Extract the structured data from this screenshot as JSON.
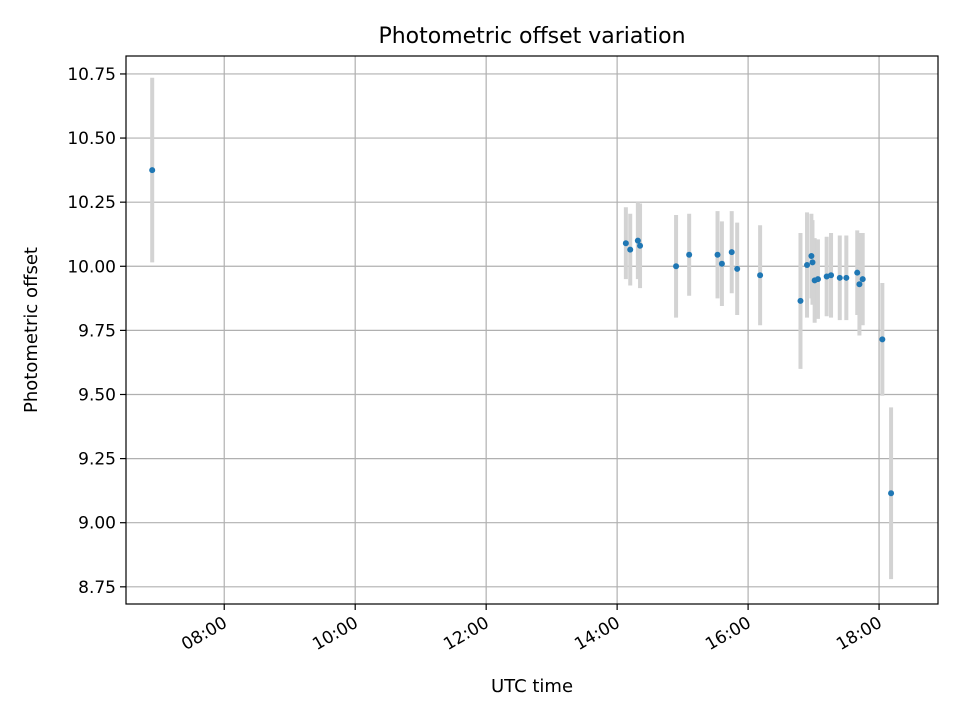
{
  "chart_data": {
    "type": "scatter",
    "title": "Photometric offset variation",
    "xlabel": "UTC time",
    "ylabel": "Photometric offset",
    "x_axis_kind": "time",
    "xlim": [
      "06:30",
      "18:54"
    ],
    "ylim": [
      8.683,
      10.82
    ],
    "x_ticks": [
      "08:00",
      "10:00",
      "12:00",
      "14:00",
      "16:00",
      "18:00"
    ],
    "y_ticks": [
      8.75,
      9.0,
      9.25,
      9.5,
      9.75,
      10.0,
      10.25,
      10.5,
      10.75
    ],
    "y_tick_labels": [
      "8.75",
      "9.00",
      "9.25",
      "9.50",
      "9.75",
      "10.00",
      "10.25",
      "10.50",
      "10.75"
    ],
    "grid": true,
    "colors": {
      "point": "#1f77b4",
      "errorbar": "#d3d3d3",
      "grid": "#b0b0b0"
    },
    "series": [
      {
        "points": [
          {
            "x": "06:54",
            "y": 10.375,
            "err": 0.36
          },
          {
            "x": "14:08",
            "y": 10.09,
            "err": 0.14
          },
          {
            "x": "14:12",
            "y": 10.065,
            "err": 0.14
          },
          {
            "x": "14:19",
            "y": 10.1,
            "err": 0.15
          },
          {
            "x": "14:21",
            "y": 10.08,
            "err": 0.165
          },
          {
            "x": "14:54",
            "y": 10.0,
            "err": 0.2
          },
          {
            "x": "15:06",
            "y": 10.045,
            "err": 0.16
          },
          {
            "x": "15:32",
            "y": 10.045,
            "err": 0.17
          },
          {
            "x": "15:36",
            "y": 10.01,
            "err": 0.165
          },
          {
            "x": "15:45",
            "y": 10.055,
            "err": 0.16
          },
          {
            "x": "15:50",
            "y": 9.99,
            "err": 0.18
          },
          {
            "x": "16:11",
            "y": 9.965,
            "err": 0.195
          },
          {
            "x": "16:48",
            "y": 9.865,
            "err": 0.265
          },
          {
            "x": "16:54",
            "y": 10.005,
            "err": 0.205
          },
          {
            "x": "16:58",
            "y": 10.04,
            "err": 0.165
          },
          {
            "x": "16:59",
            "y": 10.015,
            "err": 0.165
          },
          {
            "x": "17:01",
            "y": 9.945,
            "err": 0.165
          },
          {
            "x": "17:04",
            "y": 9.95,
            "err": 0.155
          },
          {
            "x": "17:12",
            "y": 9.96,
            "err": 0.155
          },
          {
            "x": "17:16",
            "y": 9.965,
            "err": 0.165
          },
          {
            "x": "17:24",
            "y": 9.955,
            "err": 0.165
          },
          {
            "x": "17:30",
            "y": 9.955,
            "err": 0.165
          },
          {
            "x": "17:40",
            "y": 9.975,
            "err": 0.165
          },
          {
            "x": "17:42",
            "y": 9.93,
            "err": 0.2
          },
          {
            "x": "17:45",
            "y": 9.95,
            "err": 0.18
          },
          {
            "x": "18:03",
            "y": 9.715,
            "err": 0.22
          },
          {
            "x": "18:11",
            "y": 9.115,
            "err": 0.335
          }
        ]
      }
    ]
  }
}
